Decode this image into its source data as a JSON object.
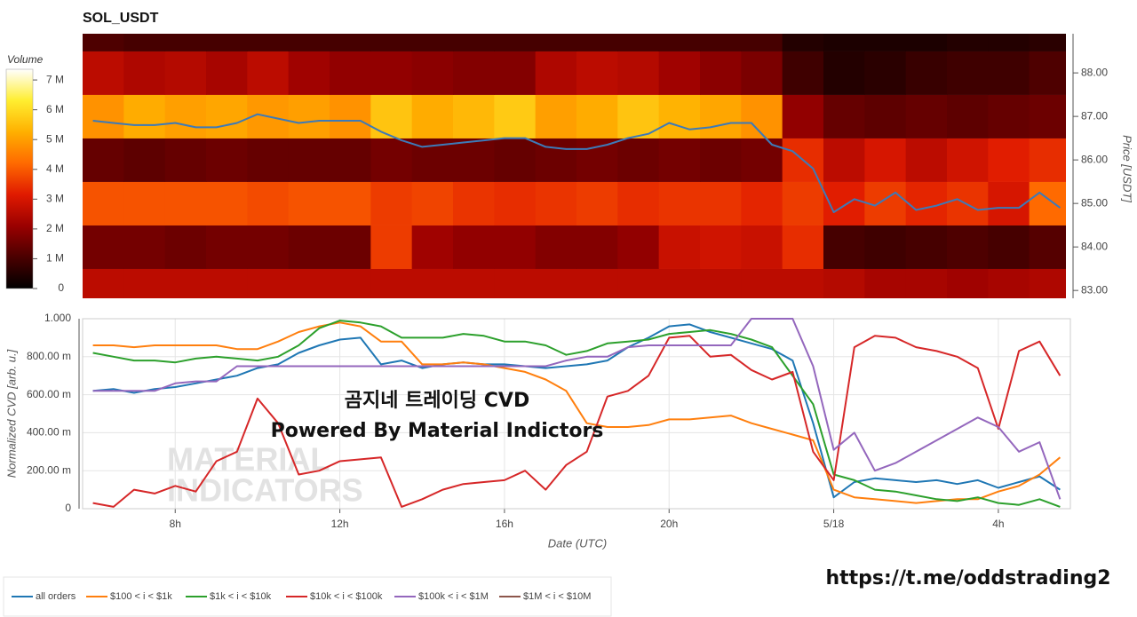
{
  "chart_data": [
    {
      "type": "heatmap",
      "title": "SOL_USDT",
      "colorbar_title": "Volume",
      "y_label": "Price [USDT]",
      "x_bins": [
        5.75,
        6.75,
        7.75,
        8.75,
        9.75,
        10.75,
        11.75,
        12.75,
        13.75,
        14.75,
        15.75,
        16.75,
        17.75,
        18.75,
        19.75,
        20.75,
        21.75,
        22.75,
        23.75,
        24.75,
        25.75,
        26.75,
        27.75,
        28.75,
        29.75
      ],
      "price_levels": [
        83,
        84,
        85,
        86,
        87,
        88,
        89
      ],
      "volume": [
        [
          2.6,
          2.6,
          2.6,
          2.6,
          2.6,
          2.6,
          2.6,
          2.6,
          2.6,
          2.6,
          2.6,
          2.6,
          2.6,
          2.6,
          2.6,
          2.6,
          2.6,
          2.6,
          2.5,
          2.3,
          2.3,
          2.2,
          2.3,
          2.4
        ],
        [
          1.6,
          1.6,
          1.5,
          1.6,
          1.6,
          1.5,
          1.5,
          3.6,
          2.2,
          2.0,
          2.0,
          1.8,
          1.8,
          2.0,
          2.8,
          2.9,
          2.8,
          3.4,
          1.0,
          0.9,
          1.0,
          1.1,
          1.0,
          1.2
        ],
        [
          3.9,
          3.9,
          3.9,
          3.9,
          3.8,
          3.9,
          3.9,
          3.6,
          3.7,
          3.5,
          3.4,
          3.5,
          3.6,
          3.4,
          3.5,
          3.5,
          3.3,
          3.6,
          3.2,
          3.6,
          3.3,
          3.5,
          3.0,
          4.2
        ],
        [
          1.4,
          1.3,
          1.4,
          1.5,
          1.4,
          1.4,
          1.4,
          1.6,
          1.5,
          1.5,
          1.4,
          1.5,
          1.6,
          1.5,
          1.6,
          1.5,
          1.6,
          3.4,
          2.6,
          3.0,
          2.6,
          2.9,
          3.2,
          3.4
        ],
        [
          4.8,
          5.2,
          5.0,
          5.1,
          4.9,
          5.0,
          4.8,
          5.6,
          5.2,
          5.4,
          5.7,
          5.0,
          5.2,
          5.6,
          5.3,
          5.1,
          4.8,
          2.0,
          1.4,
          1.3,
          1.4,
          1.3,
          1.4,
          1.5
        ],
        [
          2.6,
          2.4,
          2.5,
          2.3,
          2.6,
          2.2,
          2.0,
          2.0,
          1.9,
          1.8,
          1.8,
          2.4,
          2.6,
          2.5,
          2.2,
          1.9,
          1.7,
          0.9,
          0.5,
          0.6,
          0.8,
          0.9,
          0.9,
          1.1
        ],
        [
          1.1,
          1.0,
          1.0,
          1.0,
          1.0,
          1.0,
          1.0,
          1.0,
          1.0,
          1.0,
          1.0,
          1.0,
          1.0,
          1.0,
          1.0,
          1.0,
          1.0,
          0.5,
          0.4,
          0.4,
          0.4,
          0.5,
          0.5,
          0.6
        ]
      ],
      "clim": [
        0,
        7.36
      ],
      "colorscale": [
        "#000000",
        "#4a0000",
        "#9a0000",
        "#e01a00",
        "#ff6a00",
        "#ffb000",
        "#ffee30",
        "#ffffff"
      ],
      "cticks": [
        0,
        {
          "value": 1,
          "label": "1 M"
        },
        {
          "value": 2,
          "label": "2 M"
        },
        {
          "value": 3,
          "label": "3 M"
        },
        {
          "value": 4,
          "label": "4 M"
        },
        {
          "value": 5,
          "label": "5 M"
        },
        {
          "value": 6,
          "label": "6 M"
        },
        {
          "value": 7,
          "label": "7 M"
        }
      ],
      "x": [
        6,
        6.5,
        7,
        7.5,
        8,
        8.5,
        9,
        9.5,
        10,
        10.5,
        11,
        11.5,
        12,
        12.5,
        13,
        13.5,
        14,
        14.5,
        15,
        15.5,
        16,
        16.5,
        17,
        17.5,
        18,
        18.5,
        19,
        19.5,
        20,
        20.5,
        21,
        21.5,
        22,
        22.5,
        23,
        23.5,
        24,
        24.5,
        25,
        25.5,
        26,
        26.5,
        27,
        27.5,
        28,
        28.5,
        29,
        29.5
      ],
      "price": {
        "color": "#3d7ab8",
        "values": [
          86.9,
          86.85,
          86.8,
          86.8,
          86.85,
          86.75,
          86.75,
          86.85,
          87.05,
          86.95,
          86.85,
          86.9,
          86.9,
          86.9,
          86.65,
          86.45,
          86.3,
          86.35,
          86.4,
          86.45,
          86.5,
          86.5,
          86.3,
          86.25,
          86.25,
          86.35,
          86.5,
          86.6,
          86.85,
          86.7,
          86.75,
          86.85,
          86.85,
          86.35,
          86.2,
          85.8,
          84.8,
          85.1,
          84.95,
          85.25,
          84.85,
          84.95,
          85.1,
          84.85,
          84.9,
          84.9,
          85.25,
          84.9
        ]
      },
      "xlim": [
        5.75,
        29.75
      ],
      "ylim": [
        82.82,
        88.9
      ],
      "yticks": [
        {
          "value": 83,
          "label": "83.00"
        },
        {
          "value": 84,
          "label": "84.00"
        },
        {
          "value": 85,
          "label": "85.00"
        },
        {
          "value": 86,
          "label": "86.00"
        },
        {
          "value": 87,
          "label": "87.00"
        },
        {
          "value": 88,
          "label": "88.00"
        }
      ]
    },
    {
      "type": "line",
      "x_label": "Date (UTC)",
      "y_label": "Normalized CVD [arb. u.]",
      "annotations": [
        "곰지네 트레이딩 CVD",
        "Powered By Material Indictors"
      ],
      "watermark": [
        "MATERIAL",
        "INDICATORS"
      ],
      "x": [
        6,
        6.5,
        7,
        7.5,
        8,
        8.5,
        9,
        9.5,
        10,
        10.5,
        11,
        11.5,
        12,
        12.5,
        13,
        13.5,
        14,
        14.5,
        15,
        15.5,
        16,
        16.5,
        17,
        17.5,
        18,
        18.5,
        19,
        19.5,
        20,
        20.5,
        21,
        21.5,
        22,
        22.5,
        23,
        23.5,
        24,
        24.5,
        25,
        25.5,
        26,
        26.5,
        27,
        27.5,
        28,
        28.5,
        29,
        29.5
      ],
      "xlim": [
        5.75,
        29.75
      ],
      "ylim": [
        0,
        1
      ],
      "xticks": [
        {
          "value": 8,
          "label": "8h"
        },
        {
          "value": 12,
          "label": "12h"
        },
        {
          "value": 16,
          "label": "16h"
        },
        {
          "value": 20,
          "label": "20h"
        },
        {
          "value": 24,
          "label": "5/18"
        },
        {
          "value": 28,
          "label": "4h"
        }
      ],
      "yticks": [
        0,
        {
          "value": 0.2,
          "label": "200.00 m"
        },
        {
          "value": 0.4,
          "label": "400.00 m"
        },
        {
          "value": 0.6,
          "label": "600.00 m"
        },
        {
          "value": 0.8,
          "label": "800.00 m"
        },
        {
          "value": 1,
          "label": "1.000"
        }
      ],
      "grid": true,
      "series": [
        {
          "name": "all orders",
          "color": "#1f77b4",
          "values": [
            0.62,
            0.63,
            0.61,
            0.63,
            0.64,
            0.66,
            0.68,
            0.7,
            0.74,
            0.76,
            0.82,
            0.86,
            0.89,
            0.9,
            0.76,
            0.78,
            0.74,
            0.76,
            0.77,
            0.76,
            0.76,
            0.75,
            0.74,
            0.75,
            0.76,
            0.78,
            0.85,
            0.9,
            0.96,
            0.97,
            0.93,
            0.9,
            0.87,
            0.84,
            0.78,
            0.45,
            0.06,
            0.14,
            0.16,
            0.15,
            0.14,
            0.15,
            0.13,
            0.15,
            0.11,
            0.14,
            0.17,
            0.1
          ]
        },
        {
          "name": "$100 < i < $1k",
          "color": "#ff7f0e",
          "values": [
            0.86,
            0.86,
            0.85,
            0.86,
            0.86,
            0.86,
            0.86,
            0.84,
            0.84,
            0.88,
            0.93,
            0.96,
            0.98,
            0.96,
            0.88,
            0.88,
            0.76,
            0.76,
            0.77,
            0.76,
            0.74,
            0.72,
            0.68,
            0.62,
            0.45,
            0.43,
            0.43,
            0.44,
            0.47,
            0.47,
            0.48,
            0.49,
            0.45,
            0.42,
            0.39,
            0.36,
            0.1,
            0.06,
            0.05,
            0.04,
            0.03,
            0.04,
            0.05,
            0.05,
            0.09,
            0.12,
            0.18,
            0.27
          ]
        },
        {
          "name": "$1k < i < $10k",
          "color": "#2ca02c",
          "values": [
            0.82,
            0.8,
            0.78,
            0.78,
            0.77,
            0.79,
            0.8,
            0.79,
            0.78,
            0.8,
            0.86,
            0.95,
            0.99,
            0.98,
            0.96,
            0.9,
            0.9,
            0.9,
            0.92,
            0.91,
            0.88,
            0.88,
            0.86,
            0.81,
            0.83,
            0.87,
            0.88,
            0.89,
            0.92,
            0.93,
            0.94,
            0.92,
            0.89,
            0.85,
            0.7,
            0.55,
            0.18,
            0.15,
            0.1,
            0.09,
            0.07,
            0.05,
            0.04,
            0.06,
            0.03,
            0.02,
            0.05,
            0.01
          ]
        },
        {
          "name": "$10k < i < $100k",
          "color": "#d62728",
          "values": [
            0.03,
            0.01,
            0.1,
            0.08,
            0.12,
            0.09,
            0.25,
            0.3,
            0.58,
            0.45,
            0.18,
            0.2,
            0.25,
            0.26,
            0.27,
            0.01,
            0.05,
            0.1,
            0.13,
            0.14,
            0.15,
            0.2,
            0.1,
            0.23,
            0.3,
            0.59,
            0.62,
            0.7,
            0.9,
            0.91,
            0.8,
            0.81,
            0.73,
            0.68,
            0.72,
            0.3,
            0.15,
            0.85,
            0.91,
            0.9,
            0.85,
            0.83,
            0.8,
            0.74,
            0.42,
            0.83,
            0.88,
            0.7
          ]
        },
        {
          "name": "$100k < i < $1M",
          "color": "#9467bd",
          "values": [
            0.62,
            0.62,
            0.62,
            0.62,
            0.66,
            0.67,
            0.67,
            0.75,
            0.75,
            0.75,
            0.75,
            0.75,
            0.75,
            0.75,
            0.75,
            0.75,
            0.75,
            0.75,
            0.75,
            0.75,
            0.75,
            0.75,
            0.75,
            0.78,
            0.8,
            0.8,
            0.85,
            0.86,
            0.86,
            0.86,
            0.86,
            0.86,
            1,
            1,
            1,
            0.75,
            0.31,
            0.4,
            0.2,
            0.24,
            0.3,
            0.36,
            0.42,
            0.48,
            0.43,
            0.3,
            0.35,
            0.05
          ]
        },
        {
          "name": "$1M < i < $10M",
          "color": "#8c564b",
          "values": [
            null,
            null,
            null,
            null,
            null,
            null,
            null,
            null,
            null,
            null,
            null,
            null,
            null,
            null,
            null,
            null,
            null,
            null,
            null,
            null,
            null,
            null,
            null,
            null,
            null,
            null,
            null,
            null,
            null,
            null,
            null,
            null,
            null,
            null,
            null,
            null,
            null,
            null,
            null,
            null,
            null,
            null,
            null,
            null,
            null,
            null,
            null,
            null
          ]
        }
      ]
    }
  ],
  "footer": "https://t.me/oddstrading2"
}
